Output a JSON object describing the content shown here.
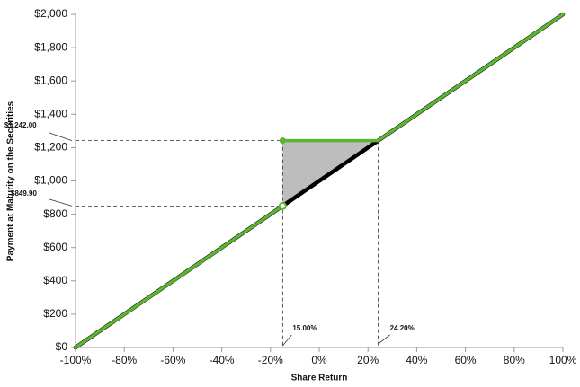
{
  "chart_data": {
    "type": "line",
    "x_label": "Share Return",
    "y_label": "Payment at Maturity on the Securities",
    "xlim": [
      -100,
      100
    ],
    "ylim": [
      0,
      2000
    ],
    "xticks": [
      {
        "value": -100,
        "label": "-100%"
      },
      {
        "value": -80,
        "label": "-80%"
      },
      {
        "value": -60,
        "label": "-60%"
      },
      {
        "value": -40,
        "label": "-40%"
      },
      {
        "value": -20,
        "label": "-20%"
      },
      {
        "value": 0,
        "label": "0%"
      },
      {
        "value": 20,
        "label": "20%"
      },
      {
        "value": 40,
        "label": "40%"
      },
      {
        "value": 60,
        "label": "60%"
      },
      {
        "value": 80,
        "label": "80%"
      },
      {
        "value": 100,
        "label": "100%"
      }
    ],
    "yticks": [
      {
        "value": 0,
        "label": "$0"
      },
      {
        "value": 200,
        "label": "$200"
      },
      {
        "value": 400,
        "label": "$400"
      },
      {
        "value": 600,
        "label": "$600"
      },
      {
        "value": 800,
        "label": "$800"
      },
      {
        "value": 1000,
        "label": "$1,000"
      },
      {
        "value": 1200,
        "label": "$1,200"
      },
      {
        "value": 1400,
        "label": "$1,400"
      },
      {
        "value": 1600,
        "label": "$1,600"
      },
      {
        "value": 1800,
        "label": "$1,800"
      },
      {
        "value": 2000,
        "label": "$2,000"
      }
    ],
    "grid": false,
    "series": [
      {
        "color": "#000000",
        "x": [
          -100,
          100
        ],
        "values": [
          0,
          2000
        ]
      },
      {
        "color": "#5cb531",
        "x": [
          -100,
          -15,
          -15,
          -15,
          24.2,
          100
        ],
        "values": [
          0,
          849.9,
          null,
          1242,
          1242,
          2000
        ]
      }
    ],
    "shade_color": "#bdbdbd",
    "annotations": [
      "$1,242.00",
      "$849.90",
      "15.00%",
      "24.20%"
    ]
  }
}
